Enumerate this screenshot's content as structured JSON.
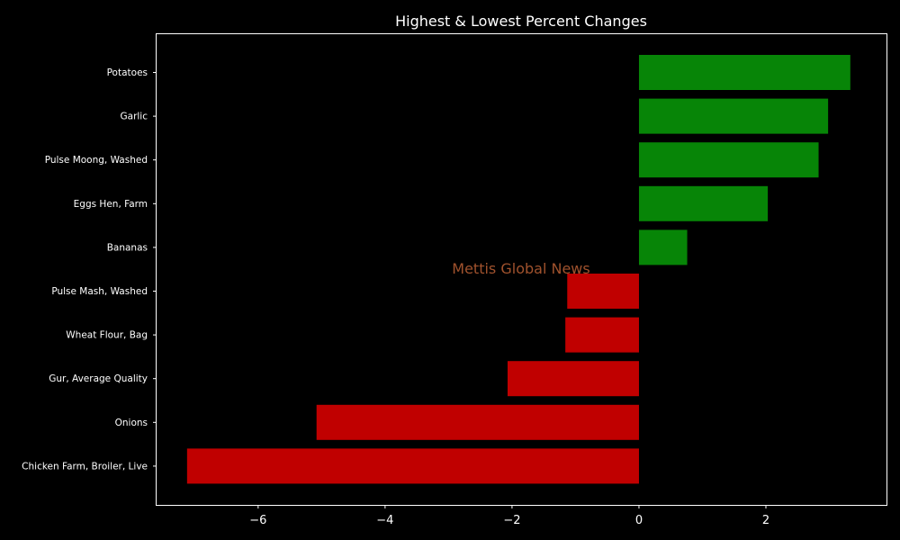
{
  "chart_data": {
    "type": "bar",
    "orientation": "horizontal",
    "title": "Highest & Lowest Percent Changes",
    "watermark": "Mettis Global News",
    "xlabel": "",
    "ylabel": "",
    "xlim": [
      -7.6,
      3.9
    ],
    "xticks": [
      -6,
      -4,
      -2,
      0,
      2
    ],
    "xtick_labels": [
      "−6",
      "−4",
      "−2",
      "0",
      "2"
    ],
    "grid": false,
    "categories": [
      "Potatoes",
      "Garlic",
      "Pulse Moong, Washed",
      "Eggs Hen, Farm",
      "Bananas",
      "Pulse Mash, Washed",
      "Wheat Flour, Bag",
      "Gur, Average Quality",
      "Onions",
      "Chicken Farm, Broiler, Live"
    ],
    "values": [
      3.33,
      2.98,
      2.83,
      2.03,
      0.76,
      -1.13,
      -1.16,
      -2.07,
      -5.08,
      -7.12
    ],
    "colors": {
      "positive": "#078507",
      "negative": "#c00000",
      "background": "#000000",
      "axes": "#ffffff",
      "text": "#ffffff",
      "watermark": "#a0522d"
    }
  }
}
